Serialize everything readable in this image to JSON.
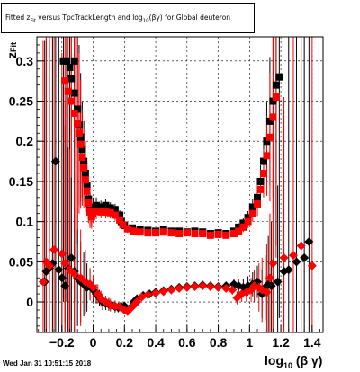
{
  "header": {
    "title_prefix": "Fitted  z",
    "title_sub1": "Fit",
    "title_mid": " versus  TpcTrackLength  and  log",
    "title_sub2": "10",
    "title_suffix": "(βγ)  for Global deuteron"
  },
  "footer": {
    "timestamp": "Wed Jan 31 10:51:15 2018"
  },
  "chart_data": {
    "type": "scatter",
    "title": "",
    "xlabel": "log10 (β γ)",
    "xlabel_main": "log",
    "xlabel_sub": "10",
    "xlabel_tail": " (β γ)",
    "ylabel": "z_Fit",
    "ylabel_main": "z",
    "ylabel_sub": "Fit",
    "xlim": [
      -0.36,
      1.47
    ],
    "ylim": [
      -0.038,
      0.33
    ],
    "xticks": [
      -0.2,
      0,
      0.2,
      0.4,
      0.6,
      0.8,
      1,
      1.2,
      1.4
    ],
    "xtick_labels": [
      "−0.2",
      "0",
      "0.2",
      "0.4",
      "0.6",
      "0.8",
      "1",
      "1.2",
      "1.4"
    ],
    "yticks": [
      0,
      0.05,
      0.1,
      0.15,
      0.2,
      0.25,
      0.3
    ],
    "ytick_labels": [
      "0",
      "0.05",
      "0.1",
      "0.15",
      "0.2",
      "0.25",
      "0.3"
    ],
    "grid": true,
    "colors": {
      "black": "#000000",
      "red": "#ff0000",
      "dark": "#220000"
    },
    "series": [
      {
        "color": "#000000",
        "marker": "square",
        "points": [
          [
            -0.12,
            0.3,
            0.3
          ],
          [
            -0.19,
            0.3,
            0.3
          ],
          [
            -0.17,
            0.3,
            0.3
          ],
          [
            -0.15,
            0.292,
            0.3
          ],
          [
            -0.14,
            0.278,
            0.3
          ],
          [
            -0.12,
            0.26,
            0.2
          ],
          [
            -0.1,
            0.24,
            0.15
          ],
          [
            -0.09,
            0.22,
            0.1
          ],
          [
            -0.08,
            0.205,
            0.08
          ],
          [
            -0.07,
            0.19,
            0.06
          ],
          [
            -0.06,
            0.175,
            0.05
          ],
          [
            -0.05,
            0.16,
            0.04
          ],
          [
            -0.04,
            0.145,
            0.03
          ],
          [
            -0.03,
            0.128,
            0.025
          ],
          [
            -0.02,
            0.115,
            0.02
          ],
          [
            -0.01,
            0.11,
            0.015
          ],
          [
            0.0,
            0.118,
            0.012
          ],
          [
            0.02,
            0.12,
            0.01
          ],
          [
            0.05,
            0.118,
            0.008
          ],
          [
            0.08,
            0.12,
            0.008
          ],
          [
            0.11,
            0.117,
            0.007
          ],
          [
            0.14,
            0.115,
            0.007
          ],
          [
            0.17,
            0.108,
            0.006
          ],
          [
            0.18,
            0.1,
            0.005
          ],
          [
            0.2,
            0.095,
            0.005
          ],
          [
            0.25,
            0.092,
            0.004
          ],
          [
            0.3,
            0.09,
            0.004
          ],
          [
            0.35,
            0.089,
            0.004
          ],
          [
            0.4,
            0.088,
            0.004
          ],
          [
            0.45,
            0.09,
            0.004
          ],
          [
            0.5,
            0.088,
            0.004
          ],
          [
            0.55,
            0.088,
            0.004
          ],
          [
            0.6,
            0.087,
            0.004
          ],
          [
            0.65,
            0.088,
            0.004
          ],
          [
            0.7,
            0.087,
            0.004
          ],
          [
            0.75,
            0.085,
            0.004
          ],
          [
            0.8,
            0.086,
            0.004
          ],
          [
            0.85,
            0.085,
            0.004
          ],
          [
            0.9,
            0.088,
            0.004
          ],
          [
            0.93,
            0.093,
            0.005
          ],
          [
            0.96,
            0.098,
            0.006
          ],
          [
            0.99,
            0.105,
            0.008
          ],
          [
            1.02,
            0.118,
            0.01
          ],
          [
            1.05,
            0.13,
            0.015
          ],
          [
            1.07,
            0.15,
            0.02
          ],
          [
            1.09,
            0.175,
            0.03
          ],
          [
            1.11,
            0.2,
            0.05
          ],
          [
            1.13,
            0.225,
            0.08
          ],
          [
            1.15,
            0.25,
            0.12
          ],
          [
            1.17,
            0.27,
            0.2
          ],
          [
            1.19,
            0.28,
            0.3
          ]
        ]
      },
      {
        "color": "#ff0000",
        "marker": "square",
        "points": [
          [
            -0.18,
            0.275,
            0.3
          ],
          [
            -0.16,
            0.262,
            0.3
          ],
          [
            -0.14,
            0.25,
            0.3
          ],
          [
            -0.12,
            0.235,
            0.2
          ],
          [
            -0.1,
            0.222,
            0.15
          ],
          [
            -0.09,
            0.21,
            0.1
          ],
          [
            -0.08,
            0.196,
            0.08
          ],
          [
            -0.07,
            0.18,
            0.06
          ],
          [
            -0.06,
            0.167,
            0.05
          ],
          [
            -0.05,
            0.152,
            0.04
          ],
          [
            -0.04,
            0.138,
            0.03
          ],
          [
            -0.03,
            0.123,
            0.025
          ],
          [
            -0.02,
            0.112,
            0.02
          ],
          [
            -0.01,
            0.106,
            0.015
          ],
          [
            0.0,
            0.11,
            0.012
          ],
          [
            0.02,
            0.113,
            0.01
          ],
          [
            0.05,
            0.112,
            0.008
          ],
          [
            0.08,
            0.112,
            0.008
          ],
          [
            0.11,
            0.111,
            0.007
          ],
          [
            0.14,
            0.108,
            0.007
          ],
          [
            0.17,
            0.102,
            0.006
          ],
          [
            0.19,
            0.096,
            0.005
          ],
          [
            0.22,
            0.091,
            0.005
          ],
          [
            0.26,
            0.088,
            0.004
          ],
          [
            0.3,
            0.087,
            0.004
          ],
          [
            0.35,
            0.086,
            0.004
          ],
          [
            0.4,
            0.086,
            0.004
          ],
          [
            0.45,
            0.087,
            0.004
          ],
          [
            0.5,
            0.086,
            0.004
          ],
          [
            0.55,
            0.085,
            0.004
          ],
          [
            0.6,
            0.086,
            0.004
          ],
          [
            0.65,
            0.085,
            0.004
          ],
          [
            0.7,
            0.085,
            0.004
          ],
          [
            0.75,
            0.083,
            0.004
          ],
          [
            0.8,
            0.084,
            0.004
          ],
          [
            0.85,
            0.083,
            0.004
          ],
          [
            0.9,
            0.085,
            0.004
          ],
          [
            0.93,
            0.088,
            0.005
          ],
          [
            0.96,
            0.093,
            0.006
          ],
          [
            0.99,
            0.1,
            0.008
          ],
          [
            1.02,
            0.11,
            0.01
          ],
          [
            1.05,
            0.122,
            0.015
          ],
          [
            1.07,
            0.14,
            0.02
          ],
          [
            1.09,
            0.16,
            0.03
          ],
          [
            1.11,
            0.182,
            0.05
          ],
          [
            1.13,
            0.205,
            0.08
          ],
          [
            1.15,
            0.23,
            0.12
          ],
          [
            1.17,
            0.255,
            0.2
          ]
        ]
      },
      {
        "color": "#000000",
        "marker": "diamond",
        "points": [
          [
            -0.31,
            0.025,
            0.3
          ],
          [
            -0.3,
            0.038,
            0.3
          ],
          [
            -0.28,
            0.042,
            0.3
          ],
          [
            -0.26,
            0.048,
            0.3
          ],
          [
            -0.24,
            0.175,
            0.3
          ],
          [
            -0.22,
            0.04,
            0.3
          ],
          [
            -0.2,
            0.03,
            0.25
          ],
          [
            -0.18,
            0.02,
            0.2
          ],
          [
            -0.16,
            0.042,
            0.15
          ],
          [
            -0.14,
            0.055,
            0.1
          ],
          [
            -0.12,
            0.038,
            0.08
          ],
          [
            -0.1,
            0.03,
            0.06
          ],
          [
            -0.08,
            0.025,
            0.05
          ],
          [
            -0.06,
            0.022,
            0.04
          ],
          [
            -0.04,
            0.018,
            0.03
          ],
          [
            -0.02,
            0.022,
            0.02
          ],
          [
            0.0,
            0.015,
            0.015
          ],
          [
            0.02,
            0.01,
            0.012
          ],
          [
            0.04,
            0.005,
            0.01
          ],
          [
            0.06,
            0.0,
            0.01
          ],
          [
            0.08,
            -0.002,
            0.008
          ],
          [
            0.1,
            -0.003,
            0.008
          ],
          [
            0.12,
            -0.004,
            0.007
          ],
          [
            0.14,
            -0.006,
            0.007
          ],
          [
            0.16,
            -0.007,
            0.006
          ],
          [
            0.18,
            -0.006,
            0.006
          ],
          [
            0.2,
            -0.005,
            0.005
          ],
          [
            0.22,
            -0.009,
            0.005
          ],
          [
            0.24,
            -0.007,
            0.005
          ],
          [
            0.26,
            0.0,
            0.004
          ],
          [
            0.28,
            0.004,
            0.004
          ],
          [
            0.32,
            0.008,
            0.004
          ],
          [
            0.36,
            0.01,
            0.004
          ],
          [
            0.4,
            0.012,
            0.004
          ],
          [
            0.45,
            0.014,
            0.004
          ],
          [
            0.5,
            0.016,
            0.004
          ],
          [
            0.55,
            0.018,
            0.004
          ],
          [
            0.6,
            0.019,
            0.004
          ],
          [
            0.65,
            0.02,
            0.004
          ],
          [
            0.7,
            0.021,
            0.004
          ],
          [
            0.75,
            0.02,
            0.004
          ],
          [
            0.8,
            0.019,
            0.004
          ],
          [
            0.85,
            0.02,
            0.005
          ],
          [
            0.9,
            0.022,
            0.006
          ],
          [
            0.93,
            0.02,
            0.008
          ],
          [
            0.96,
            0.018,
            0.01
          ],
          [
            0.99,
            0.02,
            0.012
          ],
          [
            1.02,
            0.022,
            0.015
          ],
          [
            1.05,
            0.025,
            0.02
          ],
          [
            1.08,
            0.01,
            0.03
          ],
          [
            1.1,
            0.018,
            0.04
          ],
          [
            1.12,
            0.022,
            0.06
          ],
          [
            1.14,
            0.02,
            0.08
          ],
          [
            1.18,
            0.025,
            0.12
          ],
          [
            1.22,
            0.038,
            0.2
          ],
          [
            1.25,
            0.04,
            0.3
          ],
          [
            1.3,
            0.05,
            0.3
          ],
          [
            1.35,
            0.055,
            0.3
          ],
          [
            1.38,
            0.075,
            0.3
          ]
        ]
      },
      {
        "color": "#ff0000",
        "marker": "diamond",
        "points": [
          [
            -0.32,
            0.025,
            0.3
          ],
          [
            -0.3,
            0.05,
            0.3
          ],
          [
            -0.28,
            0.045,
            0.3
          ],
          [
            -0.25,
            0.065,
            0.3
          ],
          [
            -0.2,
            0.06,
            0.25
          ],
          [
            -0.18,
            0.048,
            0.2
          ],
          [
            -0.15,
            0.04,
            0.15
          ],
          [
            -0.12,
            0.035,
            0.1
          ],
          [
            -0.08,
            0.03,
            0.06
          ],
          [
            -0.05,
            0.025,
            0.04
          ],
          [
            -0.02,
            0.022,
            0.02
          ],
          [
            0.0,
            0.018,
            0.015
          ],
          [
            0.03,
            0.01,
            0.012
          ],
          [
            0.05,
            0.004,
            0.01
          ],
          [
            0.08,
            0.0,
            0.008
          ],
          [
            0.11,
            -0.004,
            0.008
          ],
          [
            0.14,
            -0.005,
            0.007
          ],
          [
            0.17,
            -0.006,
            0.006
          ],
          [
            0.2,
            -0.01,
            0.005
          ],
          [
            0.22,
            -0.012,
            0.005
          ],
          [
            0.24,
            -0.008,
            0.005
          ],
          [
            0.26,
            -0.004,
            0.004
          ],
          [
            0.28,
            0.0,
            0.004
          ],
          [
            0.31,
            0.006,
            0.004
          ],
          [
            0.35,
            0.009,
            0.004
          ],
          [
            0.4,
            0.011,
            0.004
          ],
          [
            0.45,
            0.013,
            0.004
          ],
          [
            0.5,
            0.015,
            0.004
          ],
          [
            0.55,
            0.017,
            0.004
          ],
          [
            0.6,
            0.018,
            0.004
          ],
          [
            0.65,
            0.019,
            0.004
          ],
          [
            0.7,
            0.02,
            0.004
          ],
          [
            0.75,
            0.019,
            0.004
          ],
          [
            0.8,
            0.018,
            0.004
          ],
          [
            0.85,
            0.017,
            0.005
          ],
          [
            0.89,
            0.015,
            0.006
          ],
          [
            0.92,
            0.005,
            0.008
          ],
          [
            0.95,
            0.01,
            0.01
          ],
          [
            0.98,
            0.012,
            0.012
          ],
          [
            1.01,
            0.015,
            0.015
          ],
          [
            1.03,
            0.02,
            0.02
          ],
          [
            1.06,
            0.018,
            0.03
          ],
          [
            1.08,
            0.015,
            0.04
          ],
          [
            1.11,
            0.012,
            0.06
          ],
          [
            1.13,
            0.03,
            0.08
          ],
          [
            1.15,
            0.048,
            0.12
          ],
          [
            1.22,
            0.055,
            0.2
          ],
          [
            1.28,
            0.058,
            0.3
          ],
          [
            1.33,
            0.07,
            0.3
          ],
          [
            1.4,
            0.045,
            0.3
          ]
        ]
      }
    ]
  }
}
